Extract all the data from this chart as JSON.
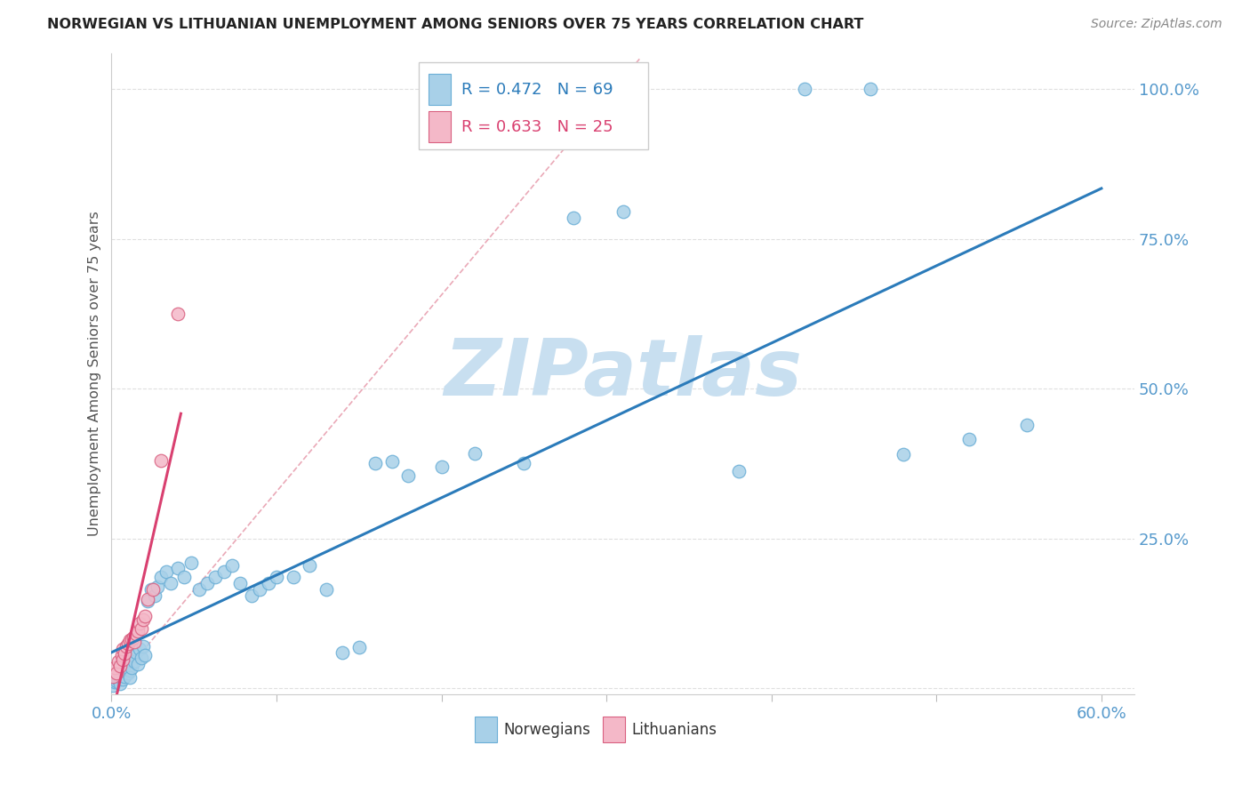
{
  "title": "NORWEGIAN VS LITHUANIAN UNEMPLOYMENT AMONG SENIORS OVER 75 YEARS CORRELATION CHART",
  "source": "Source: ZipAtlas.com",
  "ylabel": "Unemployment Among Seniors over 75 years",
  "xlim": [
    0.0,
    0.62
  ],
  "ylim": [
    -0.01,
    1.06
  ],
  "R_norwegian": 0.472,
  "N_norwegian": 69,
  "R_lithuanian": 0.633,
  "N_lithuanian": 25,
  "norwegian_face": "#a8d0e8",
  "norwegian_edge": "#6aaed6",
  "lithuanian_face": "#f4b8c8",
  "lithuanian_edge": "#d96080",
  "line_norwegian": "#2b7bba",
  "line_lithuanian": "#d94070",
  "identity_color": "#e8a0b0",
  "watermark_color": "#c8dff0",
  "grid_color": "#d8d8d8",
  "title_color": "#222222",
  "source_color": "#888888",
  "ylabel_color": "#555555",
  "tick_color": "#5599cc",
  "nor_x": [
    0.001,
    0.002,
    0.003,
    0.003,
    0.004,
    0.004,
    0.005,
    0.005,
    0.005,
    0.006,
    0.006,
    0.007,
    0.007,
    0.008,
    0.008,
    0.009,
    0.009,
    0.01,
    0.01,
    0.011,
    0.011,
    0.012,
    0.013,
    0.014,
    0.015,
    0.016,
    0.017,
    0.018,
    0.019,
    0.02,
    0.022,
    0.024,
    0.026,
    0.028,
    0.03,
    0.033,
    0.036,
    0.04,
    0.044,
    0.048,
    0.053,
    0.058,
    0.063,
    0.068,
    0.073,
    0.078,
    0.085,
    0.09,
    0.095,
    0.1,
    0.11,
    0.12,
    0.13,
    0.14,
    0.15,
    0.16,
    0.17,
    0.18,
    0.2,
    0.22,
    0.25,
    0.28,
    0.31,
    0.38,
    0.42,
    0.46,
    0.48,
    0.52,
    0.555
  ],
  "nor_y": [
    0.005,
    0.01,
    0.012,
    0.02,
    0.015,
    0.025,
    0.018,
    0.03,
    0.008,
    0.022,
    0.035,
    0.028,
    0.015,
    0.038,
    0.02,
    0.032,
    0.042,
    0.025,
    0.048,
    0.03,
    0.018,
    0.035,
    0.055,
    0.045,
    0.06,
    0.04,
    0.065,
    0.05,
    0.07,
    0.055,
    0.145,
    0.165,
    0.155,
    0.17,
    0.185,
    0.195,
    0.175,
    0.2,
    0.185,
    0.21,
    0.165,
    0.175,
    0.185,
    0.195,
    0.205,
    0.175,
    0.155,
    0.165,
    0.175,
    0.185,
    0.185,
    0.205,
    0.165,
    0.06,
    0.068,
    0.375,
    0.378,
    0.355,
    0.37,
    0.392,
    0.375,
    0.785,
    0.795,
    0.362,
    1.0,
    1.0,
    0.39,
    0.415,
    0.44
  ],
  "lit_x": [
    0.001,
    0.002,
    0.003,
    0.004,
    0.005,
    0.006,
    0.007,
    0.007,
    0.008,
    0.009,
    0.01,
    0.011,
    0.012,
    0.013,
    0.014,
    0.015,
    0.016,
    0.017,
    0.018,
    0.019,
    0.02,
    0.022,
    0.025,
    0.03,
    0.04
  ],
  "lit_y": [
    0.02,
    0.035,
    0.025,
    0.045,
    0.038,
    0.055,
    0.048,
    0.065,
    0.058,
    0.07,
    0.075,
    0.08,
    0.082,
    0.085,
    0.078,
    0.09,
    0.095,
    0.108,
    0.1,
    0.115,
    0.12,
    0.148,
    0.165,
    0.38,
    0.625
  ]
}
